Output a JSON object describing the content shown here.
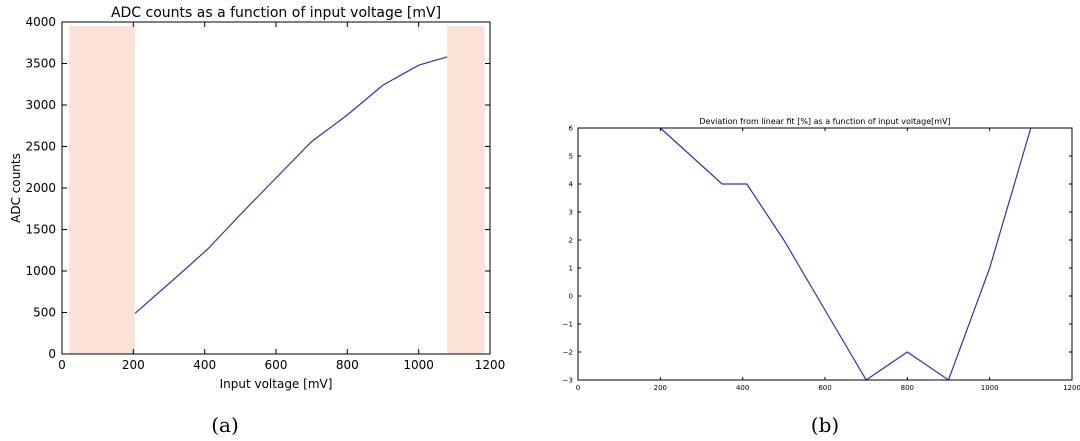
{
  "chart_data": [
    {
      "type": "line",
      "title": "ADC counts as a function of input voltage [mV]",
      "xlabel": "Input voltage [mV]",
      "ylabel": "ADC counts",
      "xlim": [
        0,
        1200
      ],
      "ylim": [
        0,
        4000
      ],
      "xticks": [
        "0",
        "200",
        "400",
        "600",
        "800",
        "1000",
        "1200"
      ],
      "yticks": [
        "0",
        "500",
        "1000",
        "1500",
        "2000",
        "2500",
        "3000",
        "3500",
        "4000"
      ],
      "grid": false,
      "shaded_regions": [
        {
          "x0": 20,
          "x1": 205,
          "y0": 0,
          "y1": 3950,
          "color": "#f9e3d7"
        },
        {
          "x0": 1080,
          "x1": 1185,
          "y0": 0,
          "y1": 3950,
          "color": "#f9e3d7"
        }
      ],
      "series": [
        {
          "color": "#3333aa",
          "x": [
            205,
            340,
            410,
            500,
            600,
            700,
            800,
            900,
            1000,
            1080
          ],
          "y": [
            490,
            1000,
            1270,
            1680,
            2120,
            2560,
            2880,
            3240,
            3480,
            3580
          ]
        }
      ],
      "caption": "(a)"
    },
    {
      "type": "line",
      "title": "Deviation from linear fit [%] as a function of input voltage[mV]",
      "xlabel": "",
      "ylabel": "",
      "xlim": [
        0,
        1200
      ],
      "ylim": [
        -3,
        6
      ],
      "xticks": [
        "0",
        "200",
        "400",
        "600",
        "800",
        "1000",
        "1200"
      ],
      "yticks": [
        "−3",
        "−2",
        "−1",
        "0",
        "1",
        "2",
        "3",
        "4",
        "5",
        "6"
      ],
      "grid": false,
      "series": [
        {
          "color": "#3333aa",
          "x": [
            200,
            350,
            410,
            500,
            600,
            700,
            800,
            900,
            1000,
            1100
          ],
          "y": [
            6,
            4,
            4,
            2,
            -0.5,
            -3,
            -2,
            -3,
            1,
            6
          ]
        }
      ],
      "caption": "(b)"
    }
  ]
}
